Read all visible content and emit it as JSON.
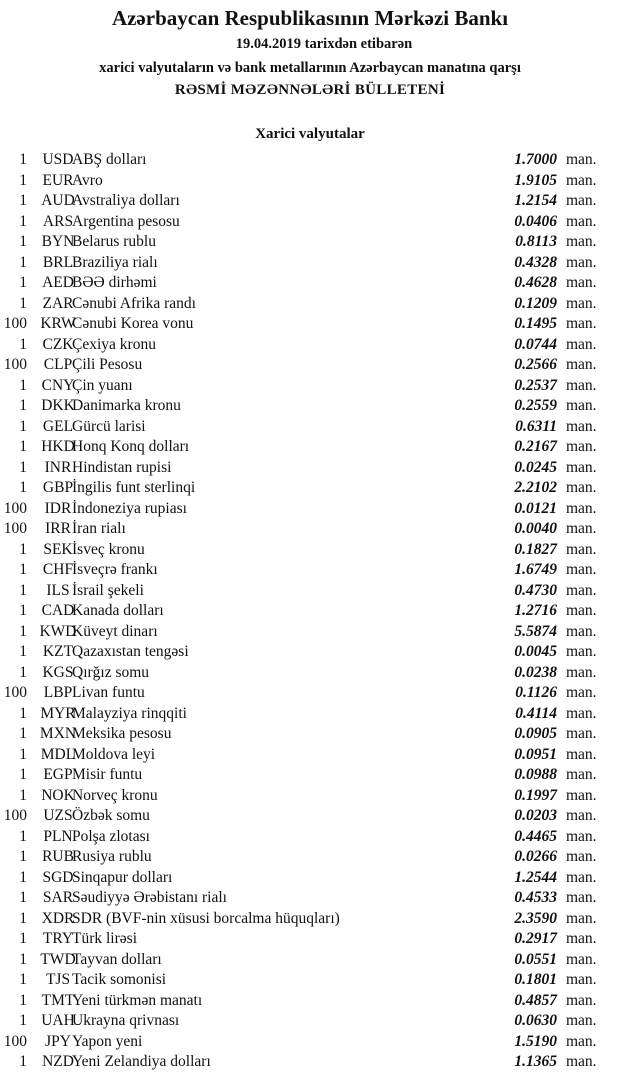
{
  "header": {
    "title": "Azərbaycan Respublikasının Mərkəzi Bankı",
    "date_line": "19.04.2019  tarixdən etibarən",
    "subtitle": "xarici valyutaların və bank metallarının Azərbaycan manatına qarşı",
    "bulletin": "RƏSMİ MƏZƏNNƏLƏRİ BÜLLETENİ",
    "section": "Xarici valyutalar"
  },
  "unit_label": "man.",
  "rates": [
    {
      "nominal": "1",
      "code": "USD",
      "name": "ABŞ dolları",
      "rate": "1.7000"
    },
    {
      "nominal": "1",
      "code": "EUR",
      "name": "Avro",
      "rate": "1.9105"
    },
    {
      "nominal": "1",
      "code": "AUD",
      "name": "Avstraliya dolları",
      "rate": "1.2154"
    },
    {
      "nominal": "1",
      "code": "ARS",
      "name": "Argentina pesosu",
      "rate": "0.0406"
    },
    {
      "nominal": "1",
      "code": "BYN",
      "name": "Belarus rublu",
      "rate": "0.8113"
    },
    {
      "nominal": "1",
      "code": "BRL",
      "name": "Braziliya rialı",
      "rate": "0.4328"
    },
    {
      "nominal": "1",
      "code": "AED",
      "name": "BƏƏ dirhəmi",
      "rate": "0.4628"
    },
    {
      "nominal": "1",
      "code": "ZAR",
      "name": "Cənubi Afrika randı",
      "rate": "0.1209"
    },
    {
      "nominal": "100",
      "code": "KRW",
      "name": "Cənubi Korea vonu",
      "rate": "0.1495"
    },
    {
      "nominal": "1",
      "code": "CZK",
      "name": "Çexiya kronu",
      "rate": "0.0744"
    },
    {
      "nominal": "100",
      "code": "CLP",
      "name": "Çili Pesosu",
      "rate": "0.2566"
    },
    {
      "nominal": "1",
      "code": "CNY",
      "name": "Çin yuanı",
      "rate": "0.2537"
    },
    {
      "nominal": "1",
      "code": "DKK",
      "name": "Danimarka kronu",
      "rate": "0.2559"
    },
    {
      "nominal": "1",
      "code": "GEL",
      "name": "Gürcü larisi",
      "rate": "0.6311"
    },
    {
      "nominal": "1",
      "code": "HKD",
      "name": "Honq Konq dolları",
      "rate": "0.2167"
    },
    {
      "nominal": "1",
      "code": "INR",
      "name": "Hindistan rupisi",
      "rate": "0.0245"
    },
    {
      "nominal": "1",
      "code": "GBP",
      "name": "İngilis funt sterlinqi",
      "rate": "2.2102"
    },
    {
      "nominal": "100",
      "code": "IDR",
      "name": "İndoneziya rupiası",
      "rate": "0.0121"
    },
    {
      "nominal": "100",
      "code": "IRR",
      "name": "İran rialı",
      "rate": "0.0040"
    },
    {
      "nominal": "1",
      "code": "SEK",
      "name": "İsveç kronu",
      "rate": "0.1827"
    },
    {
      "nominal": "1",
      "code": "CHF",
      "name": "İsveçrə frankı",
      "rate": "1.6749"
    },
    {
      "nominal": "1",
      "code": "ILS",
      "name": "İsrail şekeli",
      "rate": "0.4730"
    },
    {
      "nominal": "1",
      "code": "CAD",
      "name": "Kanada dolları",
      "rate": "1.2716"
    },
    {
      "nominal": "1",
      "code": "KWD",
      "name": "Küveyt dinarı",
      "rate": "5.5874"
    },
    {
      "nominal": "1",
      "code": "KZT",
      "name": "Qazaxıstan tengəsi",
      "rate": "0.0045"
    },
    {
      "nominal": "1",
      "code": "KGS",
      "name": "Qırğız somu",
      "rate": "0.0238"
    },
    {
      "nominal": "100",
      "code": "LBP",
      "name": "Livan funtu",
      "rate": "0.1126"
    },
    {
      "nominal": "1",
      "code": "MYR",
      "name": "Malayziya rinqqiti",
      "rate": "0.4114"
    },
    {
      "nominal": "1",
      "code": "MXN",
      "name": "Meksika pesosu",
      "rate": "0.0905"
    },
    {
      "nominal": "1",
      "code": "MDL",
      "name": "Moldova leyi",
      "rate": "0.0951"
    },
    {
      "nominal": "1",
      "code": "EGP",
      "name": "Misir funtu",
      "rate": "0.0988"
    },
    {
      "nominal": "1",
      "code": "NOK",
      "name": "Norveç kronu",
      "rate": "0.1997"
    },
    {
      "nominal": "100",
      "code": "UZS",
      "name": "Özbək somu",
      "rate": "0.0203"
    },
    {
      "nominal": "1",
      "code": "PLN",
      "name": "Polşa zlotası",
      "rate": "0.4465"
    },
    {
      "nominal": "1",
      "code": "RUB",
      "name": "Rusiya rublu",
      "rate": "0.0266"
    },
    {
      "nominal": "1",
      "code": "SGD",
      "name": "Sinqapur dolları",
      "rate": "1.2544"
    },
    {
      "nominal": "1",
      "code": "SAR",
      "name": "Səudiyyə Ərəbistanı rialı",
      "rate": "0.4533"
    },
    {
      "nominal": "1",
      "code": "XDR",
      "name": "SDR (BVF-nin xüsusi borcalma hüquqları)",
      "rate": "2.3590"
    },
    {
      "nominal": "1",
      "code": "TRY",
      "name": "Türk lirəsi",
      "rate": "0.2917"
    },
    {
      "nominal": "1",
      "code": "TWD",
      "name": "Tayvan dolları",
      "rate": "0.0551"
    },
    {
      "nominal": "1",
      "code": "TJS",
      "name": "Tacik somonisi",
      "rate": "0.1801"
    },
    {
      "nominal": "1",
      "code": "TMT",
      "name": "Yeni türkmən manatı",
      "rate": "0.4857"
    },
    {
      "nominal": "1",
      "code": "UAH",
      "name": "Ukrayna qrivnası",
      "rate": "0.0630"
    },
    {
      "nominal": "100",
      "code": "JPY",
      "name": "Yapon yeni",
      "rate": "1.5190"
    },
    {
      "nominal": "1",
      "code": "NZD",
      "name": "Yeni Zelandiya dolları",
      "rate": "1.1365"
    }
  ]
}
